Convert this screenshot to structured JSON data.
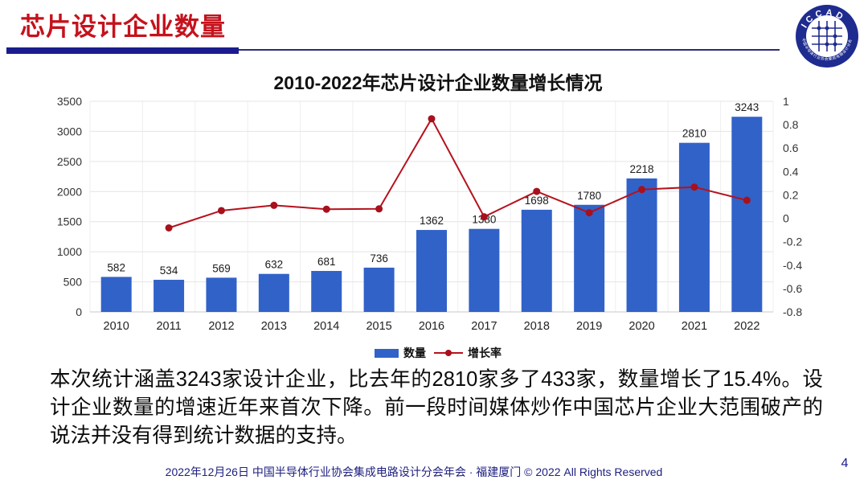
{
  "slide": {
    "header": {
      "title": "芯片设计企业数量",
      "logo": {
        "text": "ICCAD",
        "ring_text": "中国半导体行业协会集成电路设计分会"
      }
    },
    "body_text": "本次统计涵盖3243家设计企业，比去年的2810家多了433家，数量增长了15.4%。设计企业数量的增速近年来首次下降。前一段时间媒体炒作中国芯片企业大范围破产的说法并没有得到统计数据的支持。",
    "footer": {
      "text": "2022年12月26日 中国半导体行业协会集成电路设计分会年会 · 福建厦门 © 2022 All Rights Reserved",
      "page_number": "4"
    }
  },
  "chart_data": {
    "type": "bar",
    "subtype": "combo-bar-line-dual-axis",
    "title": "2010-2022年芯片设计企业数量增长情况",
    "categories": [
      "2010",
      "2011",
      "2012",
      "2013",
      "2014",
      "2015",
      "2016",
      "2017",
      "2018",
      "2019",
      "2020",
      "2021",
      "2022"
    ],
    "series": [
      {
        "name": "数量",
        "type": "bar",
        "axis": "left",
        "values": [
          582,
          534,
          569,
          632,
          681,
          736,
          1362,
          1380,
          1698,
          1780,
          2218,
          2810,
          3243
        ],
        "color": "#3162c8"
      },
      {
        "name": "增长率",
        "type": "line",
        "axis": "right",
        "values": [
          null,
          -0.082,
          0.066,
          0.111,
          0.078,
          0.081,
          0.851,
          0.013,
          0.23,
          0.048,
          0.246,
          0.267,
          0.154
        ],
        "color": "#b5121d"
      }
    ],
    "left_axis": {
      "min": 0,
      "max": 3500,
      "step": 500
    },
    "right_axis": {
      "min": -0.8,
      "max": 1,
      "step": 0.2
    },
    "legend_position": "bottom",
    "grid": true,
    "xlabel": "",
    "ylabel_left": "",
    "ylabel_right": ""
  },
  "colors": {
    "title_red": "#c5121c",
    "navy_bar": "#1a1c8e",
    "bar_blue": "#3162c8",
    "line_red": "#b5121d",
    "marker_red": "#a8101c",
    "footer_navy": "#1f2080",
    "grid_gray": "#e4e4e4"
  }
}
